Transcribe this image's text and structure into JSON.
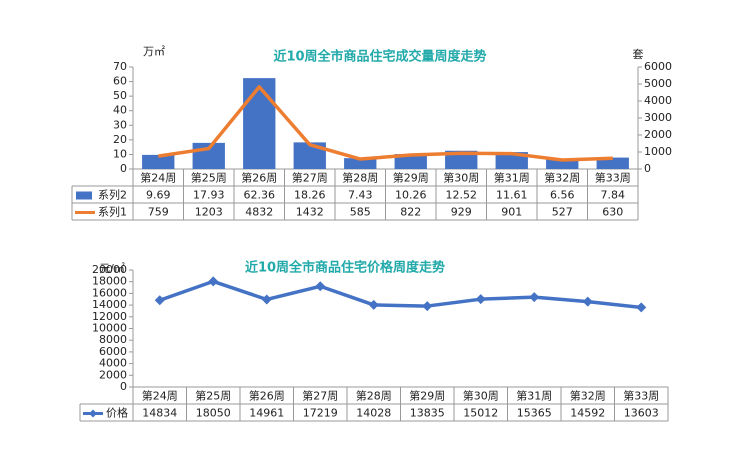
{
  "chart_data": [
    {
      "type": "combo",
      "title": "近10周全市商品住宅成交量周度走势",
      "y_label": "万㎡",
      "y2_label": "套",
      "categories": [
        "第24周",
        "第25周",
        "第26周",
        "第27周",
        "第28周",
        "第29周",
        "第30周",
        "第31周",
        "第32周",
        "第33周"
      ],
      "series": [
        {
          "name": "系列2",
          "type": "bar",
          "color": "#4472c4",
          "values": [
            9.69,
            17.93,
            62.36,
            18.26,
            7.43,
            10.26,
            12.52,
            11.61,
            6.56,
            7.84
          ]
        },
        {
          "name": "系列1",
          "type": "line",
          "axis": "y2",
          "color": "#ed7d31",
          "values": [
            759,
            1203,
            4832,
            1432,
            585,
            822,
            929,
            901,
            527,
            630
          ]
        }
      ],
      "ylim": [
        0,
        70
      ],
      "yticks": [
        0,
        10,
        20,
        30,
        40,
        50,
        60,
        70
      ],
      "y2lim": [
        0,
        6000
      ],
      "y2ticks": [
        0,
        1000,
        2000,
        3000,
        4000,
        5000,
        6000
      ],
      "grid": false
    },
    {
      "type": "line",
      "title": "近10周全市商品住宅价格周度走势",
      "y_label": "元/㎡",
      "categories": [
        "第24周",
        "第25周",
        "第26周",
        "第27周",
        "第28周",
        "第29周",
        "第30周",
        "第31周",
        "第32周",
        "第33周"
      ],
      "series": [
        {
          "name": "价格",
          "color": "#4472c4",
          "values": [
            14834,
            18050,
            14961,
            17219,
            14028,
            13835,
            15012,
            15365,
            14592,
            13603
          ]
        }
      ],
      "ylim": [
        0,
        20000
      ],
      "yticks": [
        0,
        2000,
        4000,
        6000,
        8000,
        10000,
        12000,
        14000,
        16000,
        18000,
        20000
      ],
      "grid": false
    }
  ]
}
